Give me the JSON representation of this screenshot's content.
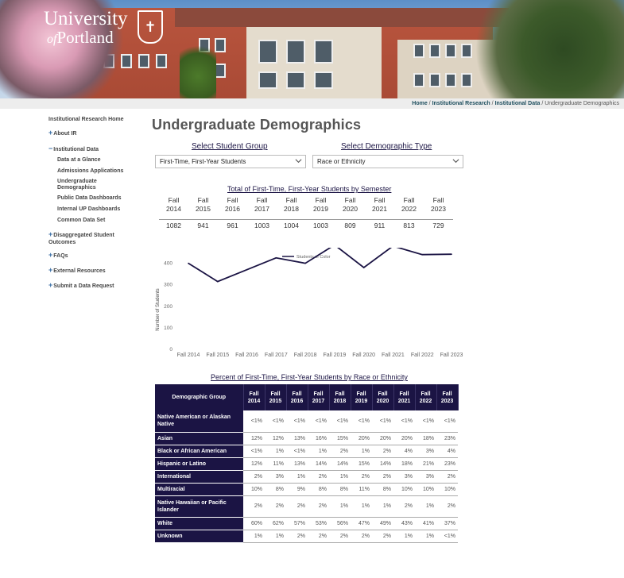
{
  "header": {
    "logo_line1": "University",
    "logo_of": "of",
    "logo_line2": "Portland"
  },
  "breadcrumb": {
    "items": [
      "Home",
      "Institutional Research",
      "Institutional Data"
    ],
    "current": "Undergraduate Demographics",
    "separator": "/"
  },
  "sidebar": {
    "home": "Institutional Research Home",
    "about": "About IR",
    "data": "Institutional Data",
    "sub": [
      "Data at a Glance",
      "Admissions Applications",
      "Undergraduate Demographics",
      "Public Data Dashboards",
      "Internal UP Dashboards",
      "Common Data Set"
    ],
    "disagg": "Disaggregated Student Outcomes",
    "faqs": "FAQs",
    "external": "External Resources",
    "submit": "Submit a Data Request"
  },
  "page_title": "Undergraduate Demographics",
  "selectors": {
    "group_label": "Select Student Group",
    "group_value": "First-Time, First-Year Students",
    "type_label": "Select Demographic Type",
    "type_value": "Race or Ethnicity"
  },
  "totals": {
    "title": "Total of First-Time, First-Year Students by Semester",
    "terms": [
      [
        "Fall",
        "2014"
      ],
      [
        "Fall",
        "2015"
      ],
      [
        "Fall",
        "2016"
      ],
      [
        "Fall",
        "2017"
      ],
      [
        "Fall",
        "2018"
      ],
      [
        "Fall",
        "2019"
      ],
      [
        "Fall",
        "2020"
      ],
      [
        "Fall",
        "2021"
      ],
      [
        "Fall",
        "2022"
      ],
      [
        "Fall",
        "2023"
      ]
    ],
    "values": [
      "1082",
      "941",
      "961",
      "1003",
      "1004",
      "1003",
      "809",
      "911",
      "813",
      "729"
    ]
  },
  "chart_data": {
    "type": "line",
    "legend": "Students of Color",
    "legend_position": "top",
    "ylabel": "Number of Students",
    "ylim": [
      0,
      450
    ],
    "yticks": [
      "0",
      "100",
      "200",
      "300",
      "400"
    ],
    "categories": [
      "Fall 2014",
      "Fall 2015",
      "Fall 2016",
      "Fall 2017",
      "Fall 2018",
      "Fall 2019",
      "Fall 2020",
      "Fall 2021",
      "Fall 2022",
      "Fall 2023"
    ],
    "series": [
      {
        "name": "Students of Color",
        "values": [
          400,
          315,
          370,
          425,
          400,
          485,
          380,
          480,
          440,
          442
        ]
      }
    ],
    "grid": false,
    "color": "#1b1444"
  },
  "race_table": {
    "title": "Percent of First-Time, First-Year Students by Race or Ethnicity",
    "group_header": "Demographic Group",
    "years": [
      [
        "Fall",
        "2014"
      ],
      [
        "Fall",
        "2015"
      ],
      [
        "Fall",
        "2016"
      ],
      [
        "Fall",
        "2017"
      ],
      [
        "Fall",
        "2018"
      ],
      [
        "Fall",
        "2019"
      ],
      [
        "Fall",
        "2020"
      ],
      [
        "Fall",
        "2021"
      ],
      [
        "Fall",
        "2022"
      ],
      [
        "Fall",
        "2023"
      ]
    ],
    "rows": [
      {
        "group": "Native American or Alaskan Native",
        "values": [
          "<1%",
          "<1%",
          "<1%",
          "<1%",
          "<1%",
          "<1%",
          "<1%",
          "<1%",
          "<1%",
          "<1%"
        ]
      },
      {
        "group": "Asian",
        "values": [
          "12%",
          "12%",
          "13%",
          "16%",
          "15%",
          "20%",
          "20%",
          "20%",
          "18%",
          "23%"
        ]
      },
      {
        "group": "Black or African American",
        "values": [
          "<1%",
          "1%",
          "<1%",
          "1%",
          "2%",
          "1%",
          "2%",
          "4%",
          "3%",
          "4%"
        ]
      },
      {
        "group": "Hispanic or Latino",
        "values": [
          "12%",
          "11%",
          "13%",
          "14%",
          "14%",
          "15%",
          "14%",
          "18%",
          "21%",
          "23%"
        ]
      },
      {
        "group": "International",
        "values": [
          "2%",
          "3%",
          "1%",
          "2%",
          "1%",
          "2%",
          "2%",
          "3%",
          "3%",
          "2%"
        ]
      },
      {
        "group": "Multiracial",
        "values": [
          "10%",
          "8%",
          "9%",
          "8%",
          "8%",
          "11%",
          "8%",
          "10%",
          "10%",
          "10%"
        ]
      },
      {
        "group": "Native Hawaiian or Pacific Islander",
        "values": [
          "2%",
          "2%",
          "2%",
          "2%",
          "1%",
          "1%",
          "1%",
          "2%",
          "1%",
          "2%"
        ]
      },
      {
        "group": "White",
        "values": [
          "60%",
          "62%",
          "57%",
          "53%",
          "56%",
          "47%",
          "49%",
          "43%",
          "41%",
          "37%"
        ]
      },
      {
        "group": "Unknown",
        "values": [
          "1%",
          "1%",
          "2%",
          "2%",
          "2%",
          "2%",
          "2%",
          "1%",
          "1%",
          "<1%"
        ]
      }
    ]
  }
}
